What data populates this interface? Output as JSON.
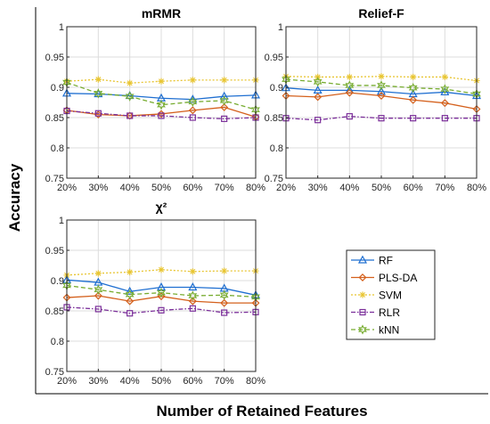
{
  "figure": {
    "ylabel": "Accuracy",
    "xlabel": "Number of Retained Features"
  },
  "legend": {
    "placement": "bottom-right",
    "items": [
      {
        "label": "RF",
        "color": "#1f6fd1",
        "marker": "triangle",
        "dash": "solid"
      },
      {
        "label": "PLS-DA",
        "color": "#d4601c",
        "marker": "diamond",
        "dash": "solid"
      },
      {
        "label": "SVM",
        "color": "#e8c532",
        "marker": "star",
        "dash": "dotted"
      },
      {
        "label": "RLR",
        "color": "#7b2f9a",
        "marker": "square",
        "dash": "dashdot"
      },
      {
        "label": "kNN",
        "color": "#77ac30",
        "marker": "hexagram",
        "dash": "dashed"
      }
    ]
  },
  "chart_data": [
    {
      "type": "line",
      "title": "mRMR",
      "categories": [
        "20%",
        "30%",
        "40%",
        "50%",
        "60%",
        "70%",
        "80%"
      ],
      "ylim": [
        0.75,
        1
      ],
      "yticks": [
        "0.75",
        "0.8",
        "0.85",
        "0.9",
        "0.95",
        "1"
      ],
      "grid": true,
      "series": [
        {
          "name": "RF",
          "values": [
            0.89,
            0.889,
            0.886,
            0.882,
            0.88,
            0.885,
            0.887
          ]
        },
        {
          "name": "PLS-DA",
          "values": [
            0.862,
            0.855,
            0.853,
            0.856,
            0.862,
            0.867,
            0.851
          ]
        },
        {
          "name": "SVM",
          "values": [
            0.91,
            0.913,
            0.907,
            0.91,
            0.912,
            0.912,
            0.912
          ]
        },
        {
          "name": "RLR",
          "values": [
            0.861,
            0.857,
            0.853,
            0.853,
            0.85,
            0.848,
            0.85
          ]
        },
        {
          "name": "kNN",
          "values": [
            0.908,
            0.89,
            0.885,
            0.871,
            0.876,
            0.878,
            0.863
          ]
        }
      ]
    },
    {
      "type": "line",
      "title": "Relief-F",
      "categories": [
        "20%",
        "30%",
        "40%",
        "50%",
        "60%",
        "70%",
        "80%"
      ],
      "ylim": [
        0.75,
        1
      ],
      "yticks": [
        "0.75",
        "0.8",
        "0.85",
        "0.9",
        "0.95",
        "1"
      ],
      "grid": true,
      "series": [
        {
          "name": "RF",
          "values": [
            0.899,
            0.895,
            0.895,
            0.893,
            0.889,
            0.892,
            0.886
          ]
        },
        {
          "name": "PLS-DA",
          "values": [
            0.886,
            0.884,
            0.891,
            0.886,
            0.879,
            0.874,
            0.864
          ]
        },
        {
          "name": "SVM",
          "values": [
            0.918,
            0.917,
            0.917,
            0.918,
            0.917,
            0.917,
            0.911
          ]
        },
        {
          "name": "RLR",
          "values": [
            0.849,
            0.846,
            0.852,
            0.849,
            0.849,
            0.849,
            0.849
          ]
        },
        {
          "name": "kNN",
          "values": [
            0.913,
            0.909,
            0.903,
            0.903,
            0.899,
            0.897,
            0.889
          ]
        }
      ]
    },
    {
      "type": "line",
      "title": "χ²",
      "categories": [
        "20%",
        "30%",
        "40%",
        "50%",
        "60%",
        "70%",
        "80%"
      ],
      "ylim": [
        0.75,
        1
      ],
      "yticks": [
        "0.75",
        "0.8",
        "0.85",
        "0.9",
        "0.95",
        "1"
      ],
      "grid": true,
      "series": [
        {
          "name": "RF",
          "values": [
            0.901,
            0.897,
            0.882,
            0.889,
            0.889,
            0.887,
            0.876
          ]
        },
        {
          "name": "PLS-DA",
          "values": [
            0.872,
            0.875,
            0.866,
            0.874,
            0.866,
            0.863,
            0.863
          ]
        },
        {
          "name": "SVM",
          "values": [
            0.909,
            0.912,
            0.914,
            0.918,
            0.915,
            0.916,
            0.916
          ]
        },
        {
          "name": "RLR",
          "values": [
            0.856,
            0.853,
            0.846,
            0.851,
            0.854,
            0.847,
            0.848
          ]
        },
        {
          "name": "kNN",
          "values": [
            0.892,
            0.885,
            0.877,
            0.88,
            0.875,
            0.876,
            0.873
          ]
        }
      ]
    }
  ]
}
